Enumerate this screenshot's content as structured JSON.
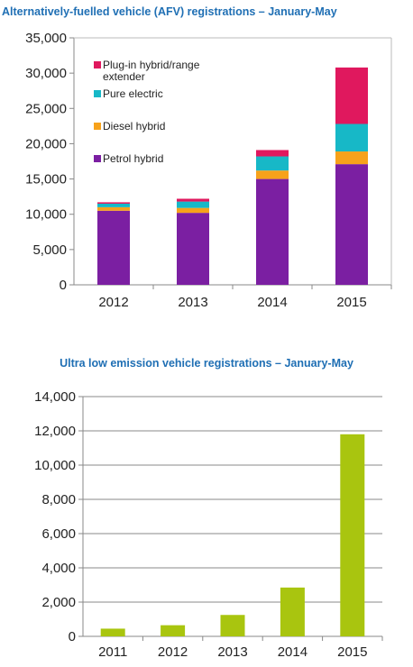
{
  "chart_data": [
    {
      "type": "bar",
      "stacked": true,
      "title": "Alternatively-fuelled vehicle (AFV) registrations – January-May",
      "xlabel": "",
      "ylabel": "",
      "categories": [
        "2012",
        "2013",
        "2014",
        "2015"
      ],
      "ylim": [
        0,
        35000
      ],
      "yticks": [
        "0",
        "5,000",
        "10,000",
        "15,000",
        "20,000",
        "25,000",
        "30,000",
        "35,000"
      ],
      "grid": false,
      "legend_position": "top-left",
      "series": [
        {
          "name": "Petrol hybrid",
          "color": "#7b1fa2",
          "values": [
            10500,
            10200,
            15000,
            17100
          ]
        },
        {
          "name": "Diesel hybrid",
          "color": "#f7a21b",
          "values": [
            500,
            700,
            1200,
            1800
          ]
        },
        {
          "name": "Pure electric",
          "color": "#17b8c7",
          "values": [
            500,
            900,
            2000,
            3900
          ]
        },
        {
          "name": "Plug-in hybrid/range extender",
          "legend_lines": [
            "Plug-in hybrid/range",
            "extender"
          ],
          "color": "#e0185e",
          "values": [
            200,
            400,
            900,
            8000
          ]
        }
      ]
    },
    {
      "type": "bar",
      "title": "Ultra low emission vehicle registrations – January-May",
      "xlabel": "",
      "ylabel": "",
      "categories": [
        "2011",
        "2012",
        "2013",
        "2014",
        "2015"
      ],
      "values": [
        450,
        650,
        1250,
        2850,
        11800
      ],
      "ylim": [
        0,
        14000
      ],
      "yticks": [
        "0",
        "2,000",
        "4,000",
        "6,000",
        "8,000",
        "10,000",
        "12,000",
        "14,000"
      ],
      "grid": true,
      "color": "#a9c50f"
    }
  ]
}
